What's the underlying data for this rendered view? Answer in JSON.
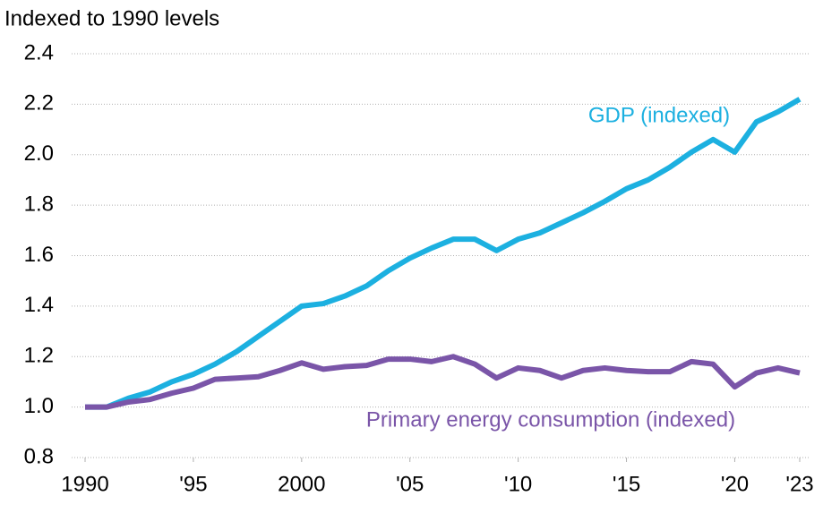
{
  "chart_data": {
    "type": "line",
    "y_axis_label": "Indexed to 1990 levels",
    "x": [
      1990,
      1991,
      1992,
      1993,
      1994,
      1995,
      1996,
      1997,
      1998,
      1999,
      2000,
      2001,
      2002,
      2003,
      2004,
      2005,
      2006,
      2007,
      2008,
      2009,
      2010,
      2011,
      2012,
      2013,
      2014,
      2015,
      2016,
      2017,
      2018,
      2019,
      2020,
      2021,
      2022,
      2023
    ],
    "series": [
      {
        "name": "GDP (indexed)",
        "color": "#1cb0e0",
        "values": [
          1.0,
          1.0,
          1.035,
          1.06,
          1.1,
          1.13,
          1.17,
          1.22,
          1.28,
          1.34,
          1.4,
          1.41,
          1.44,
          1.48,
          1.54,
          1.59,
          1.63,
          1.665,
          1.665,
          1.62,
          1.665,
          1.69,
          1.73,
          1.77,
          1.815,
          1.865,
          1.9,
          1.95,
          2.01,
          2.06,
          2.01,
          2.13,
          2.17,
          2.22
        ]
      },
      {
        "name": "Primary energy consumption (indexed)",
        "color": "#7a55a8",
        "values": [
          1.0,
          1.0,
          1.02,
          1.03,
          1.055,
          1.075,
          1.11,
          1.115,
          1.12,
          1.145,
          1.175,
          1.15,
          1.16,
          1.165,
          1.19,
          1.19,
          1.18,
          1.2,
          1.17,
          1.115,
          1.155,
          1.145,
          1.115,
          1.145,
          1.155,
          1.145,
          1.14,
          1.14,
          1.18,
          1.17,
          1.08,
          1.135,
          1.155,
          1.135
        ]
      }
    ],
    "xlim": [
      1990,
      2023
    ],
    "xticks": [
      1990,
      {
        "value": 1995,
        "label": "'95"
      },
      2000,
      {
        "value": 2005,
        "label": "'05"
      },
      {
        "value": 2010,
        "label": "'10"
      },
      {
        "value": 2015,
        "label": "'15"
      },
      {
        "value": 2020,
        "label": "'20"
      },
      {
        "value": 2023,
        "label": "'23"
      }
    ],
    "ylim": [
      0.8,
      2.4
    ],
    "yticks": [
      0.8,
      {
        "value": 1.0,
        "label": "1.0"
      },
      1.2,
      1.4,
      1.6,
      1.8,
      {
        "value": 2.0,
        "label": "2.0"
      },
      2.2,
      2.4
    ],
    "grid": true
  }
}
